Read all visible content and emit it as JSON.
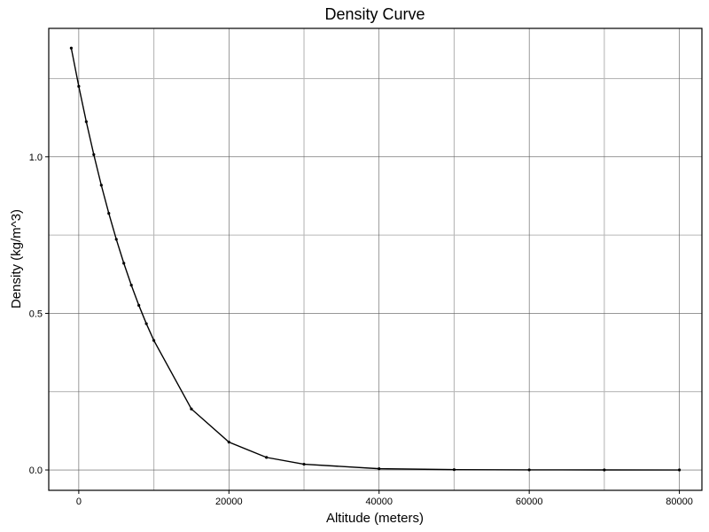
{
  "chart_data": {
    "type": "line",
    "title": "Density Curve",
    "xlabel": "Altitude (meters)",
    "ylabel": "Density (kg/m^3)",
    "xlim": [
      -4000,
      83000
    ],
    "ylim": [
      -0.065,
      1.41
    ],
    "x_major_ticks": [
      0,
      20000,
      40000,
      60000,
      80000
    ],
    "x_minor_ticks": [
      10000,
      30000,
      50000,
      70000
    ],
    "y_major_ticks": [
      0.0,
      0.5,
      1.0
    ],
    "y_minor_ticks": [
      0.25,
      0.75,
      1.25
    ],
    "x_tick_labels": [
      "0",
      "20000",
      "40000",
      "60000",
      "80000"
    ],
    "y_tick_labels": [
      "0.0",
      "0.5",
      "1.0"
    ],
    "grid": true,
    "series": [
      {
        "x": [
          -1000,
          0,
          1000,
          2000,
          3000,
          4000,
          5000,
          6000,
          7000,
          8000,
          9000,
          10000,
          15000,
          20000,
          25000,
          30000,
          40000,
          50000,
          60000,
          70000,
          80000
        ],
        "y": [
          1.347,
          1.225,
          1.112,
          1.007,
          0.9093,
          0.8194,
          0.7364,
          0.6601,
          0.59,
          0.5258,
          0.4671,
          0.4135,
          0.1948,
          0.08891,
          0.04008,
          0.01841,
          0.003996,
          0.001027,
          0.0003097,
          8.28e-05,
          1.85e-05
        ]
      }
    ],
    "colors": {
      "line": "#000000",
      "major_grid": "#5a5a5a",
      "minor_grid": "#b8b8b8"
    }
  }
}
